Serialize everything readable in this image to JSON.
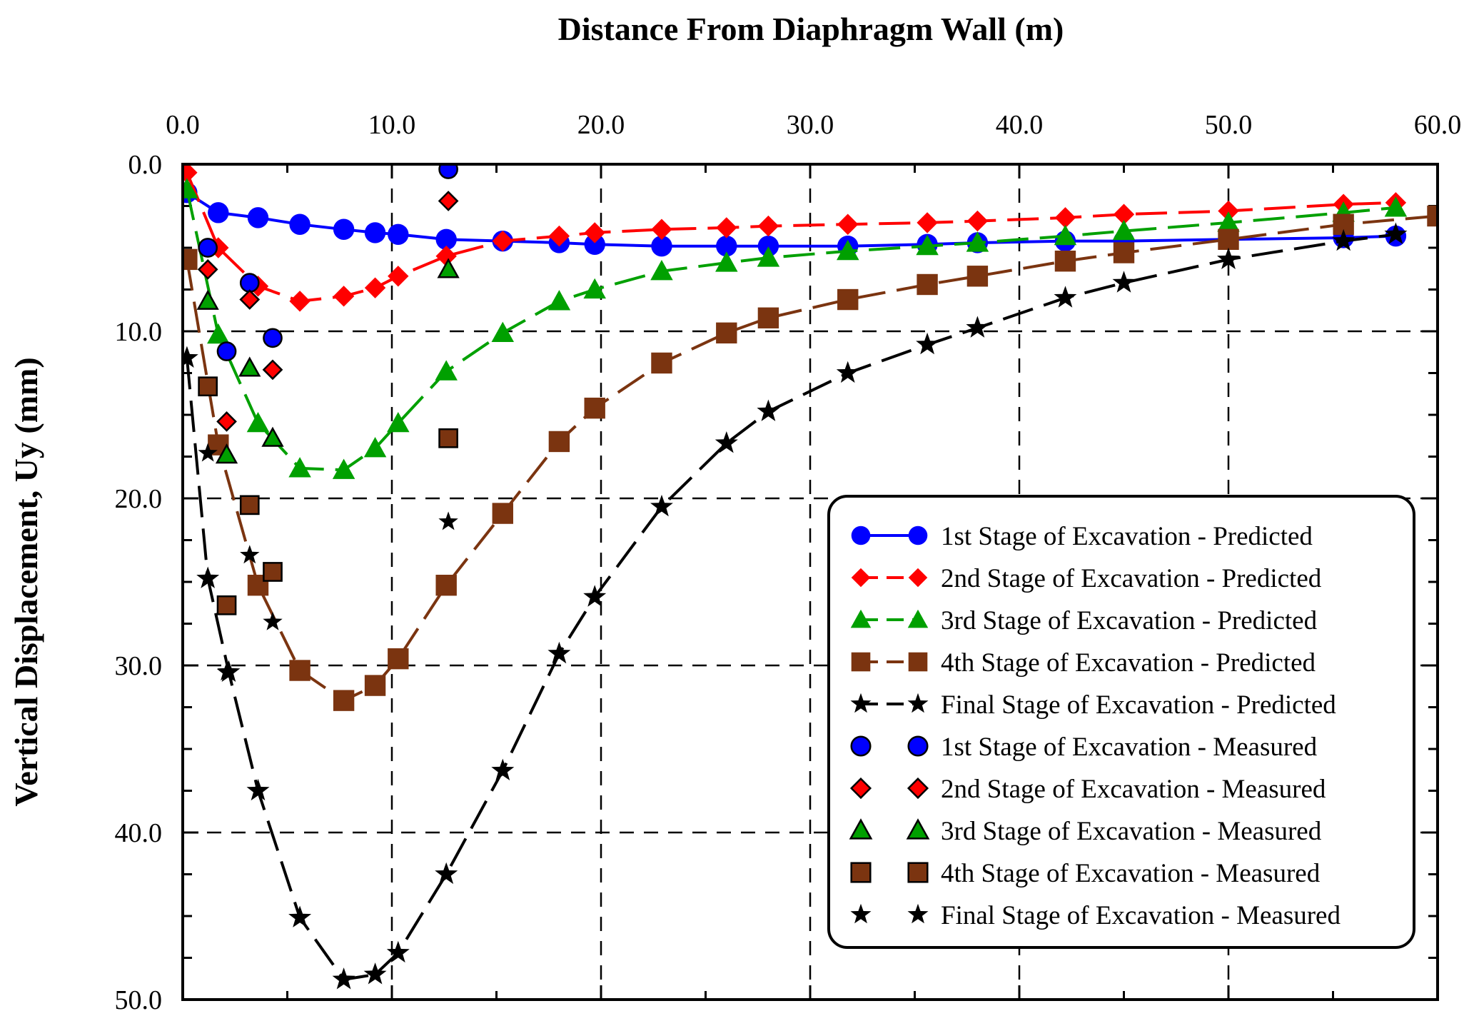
{
  "chart_data": {
    "type": "scatter",
    "xlabel": "Distance From Diaphragm Wall (m)",
    "ylabel": "Vertical Displacement, Uy (mm)",
    "xlim": [
      0,
      60
    ],
    "ylim": [
      0,
      50
    ],
    "y_inverted": true,
    "x_axis_position": "top",
    "x_ticks": [
      "0.0",
      "10.0",
      "20.0",
      "30.0",
      "40.0",
      "50.0",
      "60.0"
    ],
    "y_ticks": [
      "0.0",
      "10.0",
      "20.0",
      "30.0",
      "40.0",
      "50.0"
    ],
    "grid": "dashed",
    "legend_position": "bottom-right",
    "series": [
      {
        "name": "1st Stage of Excavation - Predicted",
        "kind": "predicted",
        "marker": "circle",
        "color": "#0000ff",
        "dash": "solid",
        "x": [
          0.2,
          1.7,
          3.6,
          5.6,
          7.7,
          9.2,
          10.3,
          12.6,
          15.3,
          18.0,
          19.7,
          22.9,
          26.0,
          28.0,
          31.8,
          35.6,
          38.0,
          42.2,
          45.0,
          50.0,
          55.5,
          58.0
        ],
        "y": [
          1.7,
          2.9,
          3.2,
          3.6,
          3.9,
          4.1,
          4.2,
          4.5,
          4.6,
          4.7,
          4.8,
          4.9,
          4.9,
          4.9,
          4.9,
          4.8,
          4.7,
          4.6,
          4.6,
          4.5,
          4.4,
          4.3
        ]
      },
      {
        "name": "2nd Stage of Excavation - Predicted",
        "kind": "predicted",
        "marker": "diamond",
        "color": "#ff0000",
        "dash": "dashed",
        "x": [
          0.2,
          1.7,
          3.6,
          5.6,
          7.7,
          9.2,
          10.3,
          12.6,
          15.3,
          18.0,
          19.7,
          22.9,
          26.0,
          28.0,
          31.8,
          35.6,
          38.0,
          42.2,
          45.0,
          50.0,
          55.5,
          58.0
        ],
        "y": [
          0.5,
          5.0,
          7.3,
          8.2,
          7.9,
          7.4,
          6.7,
          5.5,
          4.6,
          4.3,
          4.1,
          3.9,
          3.8,
          3.7,
          3.6,
          3.5,
          3.4,
          3.2,
          3.0,
          2.8,
          2.4,
          2.3
        ]
      },
      {
        "name": "3rd Stage of Excavation - Predicted",
        "kind": "predicted",
        "marker": "triangle",
        "color": "#00a000",
        "dash": "dashed",
        "x": [
          0.2,
          1.7,
          3.6,
          5.6,
          7.7,
          9.2,
          10.3,
          12.6,
          15.3,
          18.0,
          19.7,
          22.9,
          26.0,
          28.0,
          31.8,
          35.6,
          38.0,
          42.2,
          45.0,
          50.0,
          55.5,
          58.0
        ],
        "y": [
          1.5,
          10.2,
          15.5,
          18.2,
          18.3,
          17.0,
          15.5,
          12.4,
          10.1,
          8.2,
          7.5,
          6.4,
          5.9,
          5.6,
          5.2,
          4.9,
          4.7,
          4.3,
          4.0,
          3.5,
          2.9,
          2.6
        ]
      },
      {
        "name": "4th Stage of Excavation - Predicted",
        "kind": "predicted",
        "marker": "square",
        "color": "#7b3410",
        "dash": "dashed",
        "x": [
          0.2,
          1.7,
          3.6,
          5.6,
          7.7,
          9.2,
          10.3,
          12.6,
          15.3,
          18.0,
          19.7,
          22.9,
          26.0,
          28.0,
          31.8,
          35.6,
          38.0,
          42.2,
          45.0,
          50.0,
          55.5,
          60.0
        ],
        "y": [
          5.7,
          16.8,
          25.2,
          30.3,
          32.1,
          31.2,
          29.6,
          25.2,
          20.9,
          16.6,
          14.6,
          11.9,
          10.1,
          9.2,
          8.1,
          7.2,
          6.7,
          5.8,
          5.3,
          4.5,
          3.6,
          3.1
        ]
      },
      {
        "name": "Final Stage of Excavation - Predicted",
        "kind": "predicted",
        "marker": "star",
        "color": "#000000",
        "dash": "dashed",
        "x": [
          0.2,
          1.2,
          2.2,
          3.6,
          5.6,
          7.7,
          9.2,
          10.3,
          12.6,
          15.3,
          18.0,
          19.7,
          22.9,
          26.0,
          28.0,
          31.8,
          35.6,
          38.0,
          42.2,
          45.0,
          50.0,
          55.5,
          58.0
        ],
        "y": [
          11.6,
          24.8,
          30.4,
          37.5,
          45.1,
          48.8,
          48.5,
          47.2,
          42.5,
          36.3,
          29.3,
          25.9,
          20.5,
          16.7,
          14.8,
          12.5,
          10.8,
          9.8,
          8.0,
          7.1,
          5.7,
          4.6,
          4.2
        ]
      },
      {
        "name": "1st Stage of Excavation - Measured",
        "kind": "measured",
        "marker": "circle",
        "color": "#0000ff",
        "x": [
          1.2,
          3.2,
          4.3,
          2.1,
          12.7
        ],
        "y": [
          5.0,
          7.1,
          10.4,
          11.2,
          0.3
        ]
      },
      {
        "name": "2nd Stage of Excavation - Measured",
        "kind": "measured",
        "marker": "diamond",
        "color": "#ff0000",
        "x": [
          1.2,
          3.2,
          4.3,
          2.1,
          12.7
        ],
        "y": [
          6.3,
          8.1,
          12.3,
          15.4,
          2.2
        ]
      },
      {
        "name": "3rd Stage of Excavation - Measured",
        "kind": "measured",
        "marker": "triangle",
        "color": "#00a000",
        "x": [
          1.2,
          3.2,
          4.3,
          2.1,
          12.7
        ],
        "y": [
          8.2,
          12.2,
          16.4,
          17.4,
          6.3
        ]
      },
      {
        "name": "4th Stage of Excavation - Measured",
        "kind": "measured",
        "marker": "square",
        "color": "#7b3410",
        "x": [
          1.2,
          3.2,
          4.3,
          2.1,
          12.7
        ],
        "y": [
          13.3,
          20.4,
          24.4,
          26.4,
          16.4
        ]
      },
      {
        "name": "Final Stage of Excavation - Measured",
        "kind": "measured",
        "marker": "star",
        "color": "#000000",
        "x": [
          1.2,
          3.2,
          4.3,
          2.1,
          12.7
        ],
        "y": [
          17.3,
          23.4,
          27.4,
          30.4,
          21.4
        ]
      }
    ]
  }
}
